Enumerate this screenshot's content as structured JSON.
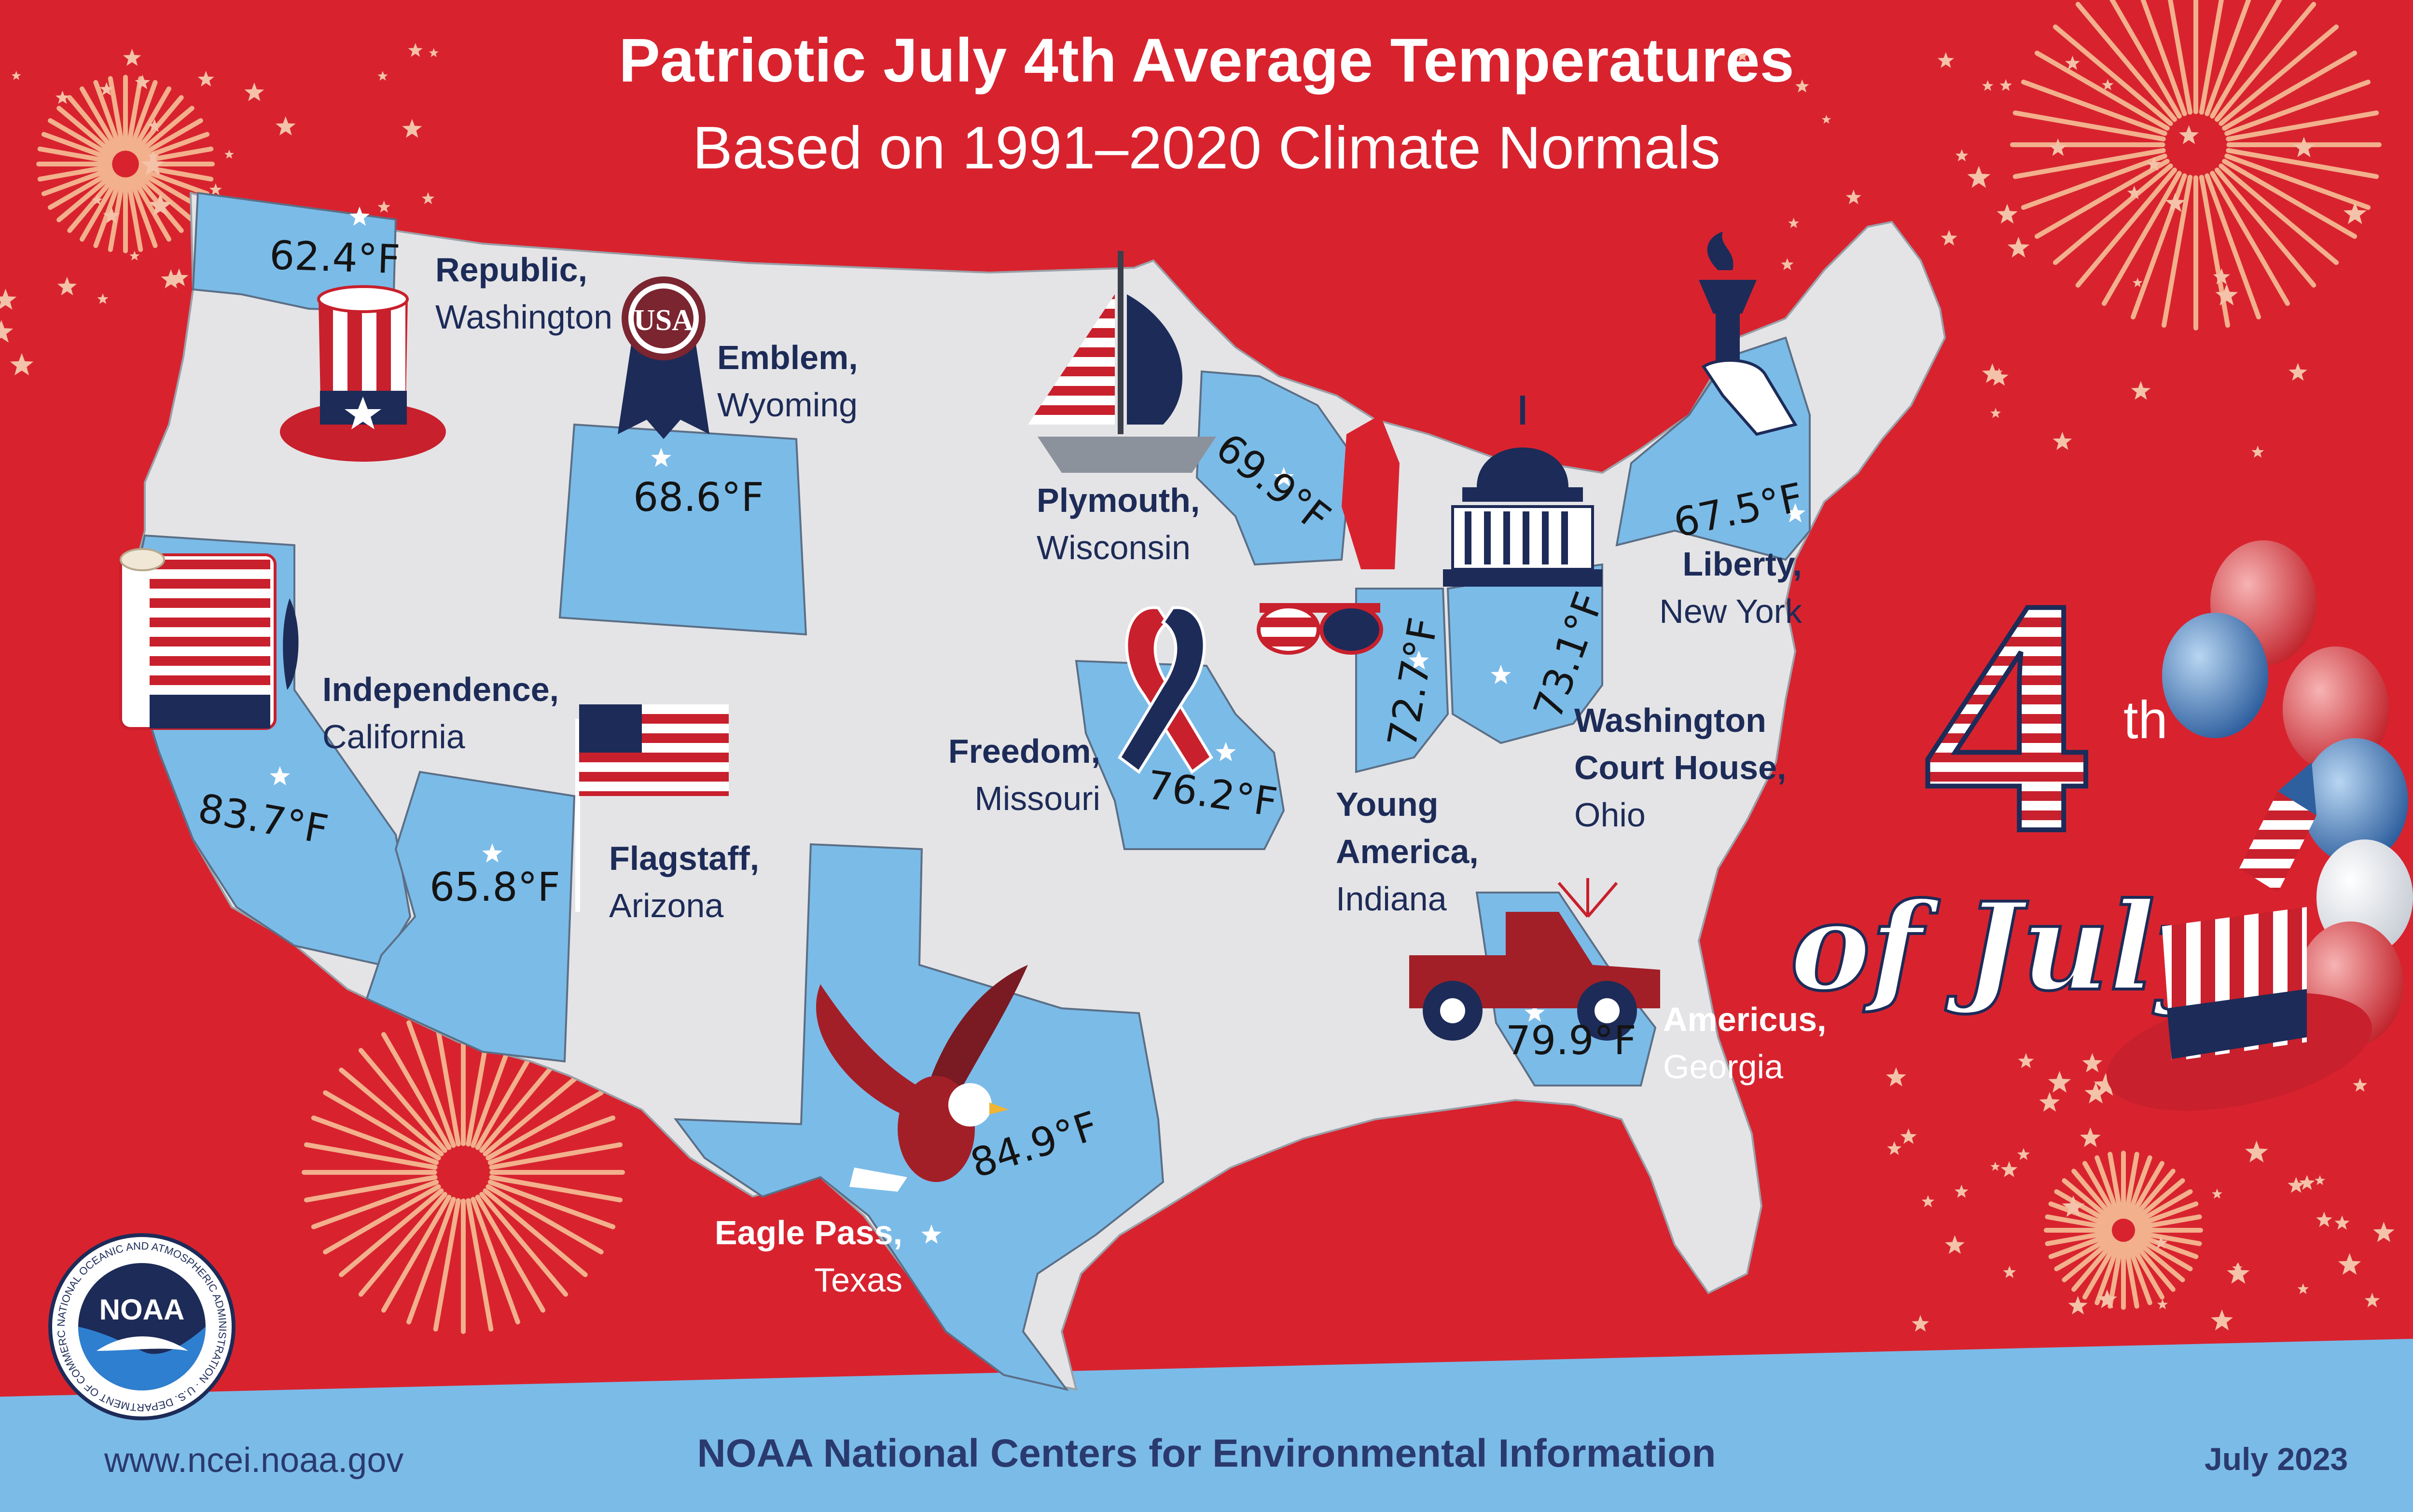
{
  "title": "Patriotic July 4th Average Temperatures",
  "subtitle": "Based on 1991–2020 Climate Normals",
  "locations": [
    {
      "town": "Republic,",
      "state": "Washington",
      "temp": "62.4°F"
    },
    {
      "town": "Emblem,",
      "state": "Wyoming",
      "temp": "68.6°F"
    },
    {
      "town": "Independence,",
      "state": "California",
      "temp": "83.7°F"
    },
    {
      "town": "Flagstaff,",
      "state": "Arizona",
      "temp": "65.8°F"
    },
    {
      "town": "Eagle Pass,",
      "state": "Texas",
      "temp": "84.9°F"
    },
    {
      "town": "Freedom,",
      "state": "Missouri",
      "temp": "76.2°F"
    },
    {
      "town": "Plymouth,",
      "state": "Wisconsin",
      "temp": "69.9°F"
    },
    {
      "town": "Young America,",
      "state": "Indiana",
      "temp": "72.7°F"
    },
    {
      "town": "Washington Court House,",
      "state": "Ohio",
      "temp": "73.1°F"
    },
    {
      "town": "Liberty,",
      "state": "New York",
      "temp": "67.5°F"
    },
    {
      "town": "Americus,",
      "state": "Georgia",
      "temp": "79.9°F"
    }
  ],
  "badge": {
    "usa": "USA",
    "number": "4",
    "suffix": "th",
    "script": "of July"
  },
  "logo": {
    "text": "NOAA",
    "ring": "NATIONAL OCEANIC AND ATMOSPHERIC ADMINISTRATION · U.S. DEPARTMENT OF COMMERCE"
  },
  "footer": {
    "url": "www.ncei.noaa.gov",
    "org": "NOAA National Centers for Environmental Information",
    "date": "July 2023"
  },
  "colors": {
    "background": "#d8232f",
    "land": "#e4e4e6",
    "highlight_state": "#7bbbe8",
    "banner": "#7bbbe8",
    "navy": "#1d2b58",
    "firework": "#f2b08c"
  }
}
